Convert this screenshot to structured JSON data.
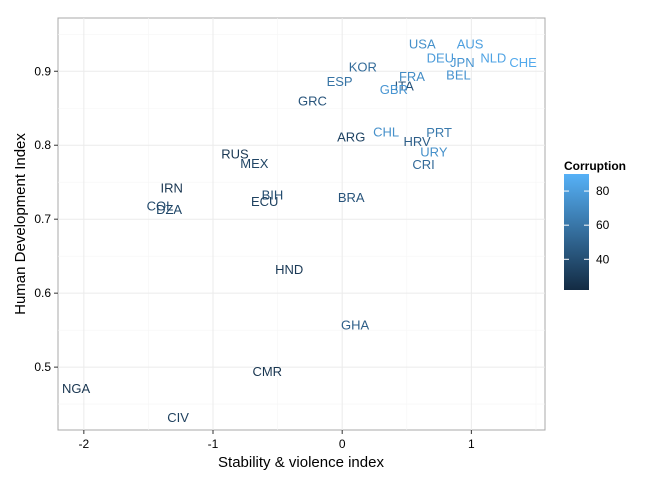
{
  "chart_data": {
    "type": "scatter",
    "title": "",
    "xlabel": "Stability & violence index",
    "ylabel": "Human Development Index",
    "xlim": [
      -2.2,
      1.57
    ],
    "ylim": [
      0.415,
      0.972
    ],
    "x_ticks": [
      -2,
      -1,
      0,
      1
    ],
    "x_tick_labels": [
      "-2",
      "-1",
      "0",
      "1"
    ],
    "y_ticks": [
      0.5,
      0.6,
      0.7,
      0.8,
      0.9
    ],
    "y_tick_labels": [
      "0.5",
      "0.6",
      "0.7",
      "0.8",
      "0.9"
    ],
    "grid": true,
    "legend": {
      "title": "Corruption",
      "position": "right",
      "range": [
        22,
        90
      ],
      "ticks": [
        40,
        60,
        80
      ],
      "tick_labels": [
        "40",
        "60",
        "80"
      ],
      "low_color": "#132b43",
      "high_color": "#56b1f7"
    },
    "points": [
      {
        "label": "USA",
        "x": 0.62,
        "y": 0.937,
        "corruption": 73
      },
      {
        "label": "AUS",
        "x": 0.99,
        "y": 0.937,
        "corruption": 81
      },
      {
        "label": "DEU",
        "x": 0.76,
        "y": 0.918,
        "corruption": 79
      },
      {
        "label": "NLD",
        "x": 1.17,
        "y": 0.918,
        "corruption": 83
      },
      {
        "label": "JPN",
        "x": 0.93,
        "y": 0.912,
        "corruption": 76
      },
      {
        "label": "CHE",
        "x": 1.4,
        "y": 0.912,
        "corruption": 86
      },
      {
        "label": "KOR",
        "x": 0.16,
        "y": 0.906,
        "corruption": 55
      },
      {
        "label": "BEL",
        "x": 0.9,
        "y": 0.895,
        "corruption": 75
      },
      {
        "label": "FRA",
        "x": 0.54,
        "y": 0.893,
        "corruption": 71
      },
      {
        "label": "ESP",
        "x": -0.02,
        "y": 0.886,
        "corruption": 59
      },
      {
        "label": "ITA",
        "x": 0.48,
        "y": 0.88,
        "corruption": 43
      },
      {
        "label": "GBR",
        "x": 0.4,
        "y": 0.875,
        "corruption": 76
      },
      {
        "label": "GRC",
        "x": -0.23,
        "y": 0.86,
        "corruption": 43
      },
      {
        "label": "CHL",
        "x": 0.34,
        "y": 0.818,
        "corruption": 73
      },
      {
        "label": "PRT",
        "x": 0.75,
        "y": 0.817,
        "corruption": 62
      },
      {
        "label": "ARG",
        "x": 0.07,
        "y": 0.811,
        "corruption": 34
      },
      {
        "label": "HRV",
        "x": 0.58,
        "y": 0.805,
        "corruption": 48
      },
      {
        "label": "URY",
        "x": 0.71,
        "y": 0.791,
        "corruption": 73
      },
      {
        "label": "RUS",
        "x": -0.83,
        "y": 0.788,
        "corruption": 28
      },
      {
        "label": "CRI",
        "x": 0.63,
        "y": 0.774,
        "corruption": 54
      },
      {
        "label": "MEX",
        "x": -0.68,
        "y": 0.775,
        "corruption": 35
      },
      {
        "label": "IRN",
        "x": -1.32,
        "y": 0.742,
        "corruption": 27
      },
      {
        "label": "BIH",
        "x": -0.54,
        "y": 0.733,
        "corruption": 39
      },
      {
        "label": "BRA",
        "x": 0.07,
        "y": 0.729,
        "corruption": 43
      },
      {
        "label": "ECU",
        "x": -0.6,
        "y": 0.724,
        "corruption": 33
      },
      {
        "label": "COL",
        "x": -1.41,
        "y": 0.718,
        "corruption": 37
      },
      {
        "label": "DZA",
        "x": -1.34,
        "y": 0.713,
        "corruption": 36
      },
      {
        "label": "HND",
        "x": -0.41,
        "y": 0.632,
        "corruption": 29
      },
      {
        "label": "GHA",
        "x": 0.1,
        "y": 0.557,
        "corruption": 48
      },
      {
        "label": "CMR",
        "x": -0.58,
        "y": 0.494,
        "corruption": 27
      },
      {
        "label": "NGA",
        "x": -2.06,
        "y": 0.471,
        "corruption": 27
      },
      {
        "label": "CIV",
        "x": -1.27,
        "y": 0.432,
        "corruption": 32
      }
    ]
  }
}
